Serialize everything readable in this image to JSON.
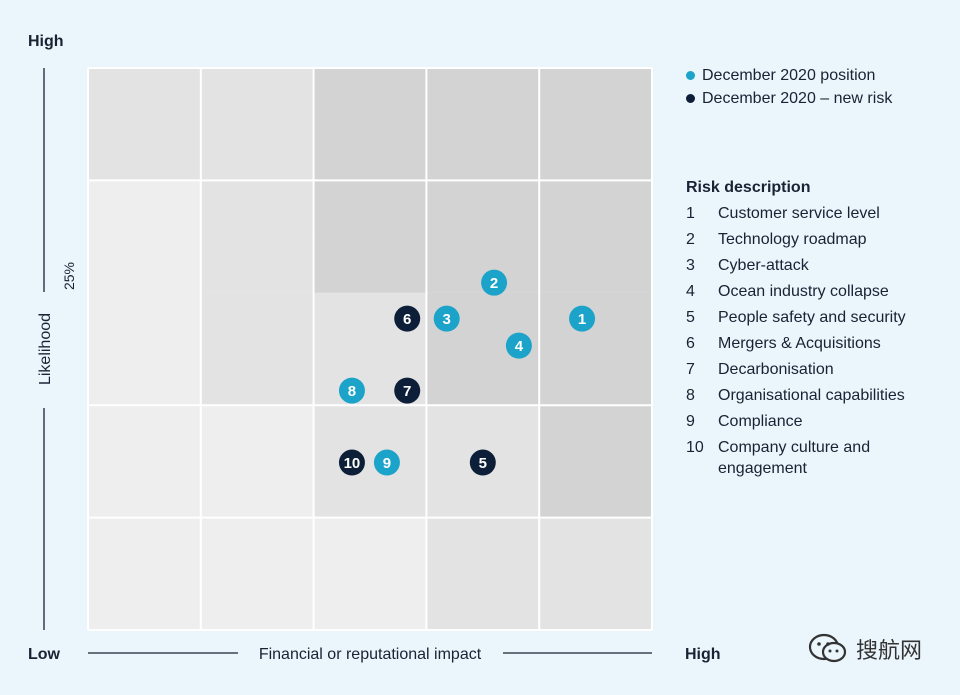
{
  "chart_data": {
    "type": "scatter",
    "x_axis_label": "Financial or reputational impact",
    "y_axis_label": "Likelihood",
    "y_marker_label": "25%",
    "x_low_label": "Low",
    "x_high_label": "High",
    "y_high_label": "High",
    "xlim": [
      0,
      5
    ],
    "ylim": [
      0,
      5
    ],
    "grid": {
      "columns": 5,
      "rows": 5
    },
    "series": [
      {
        "name": "December 2020 position",
        "color": "#1ca3c9",
        "points": [
          {
            "id": "1",
            "x": 4.38,
            "y": 2.77
          },
          {
            "id": "2",
            "x": 3.6,
            "y": 3.09
          },
          {
            "id": "3",
            "x": 3.18,
            "y": 2.77
          },
          {
            "id": "4",
            "x": 3.82,
            "y": 2.53
          },
          {
            "id": "8",
            "x": 2.34,
            "y": 2.13
          },
          {
            "id": "9",
            "x": 2.65,
            "y": 1.49
          }
        ]
      },
      {
        "name": "December 2020 – new risk",
        "color": "#0d1f38",
        "points": [
          {
            "id": "6",
            "x": 2.83,
            "y": 2.77
          },
          {
            "id": "7",
            "x": 2.83,
            "y": 2.13
          },
          {
            "id": "10",
            "x": 2.34,
            "y": 1.49
          },
          {
            "id": "5",
            "x": 3.5,
            "y": 1.49
          }
        ]
      }
    ]
  },
  "legend": {
    "items": [
      {
        "label": "December 2020 position",
        "color": "#1ca3c9"
      },
      {
        "label": "December 2020 – new risk",
        "color": "#0d1f38"
      }
    ]
  },
  "risk_description": {
    "title": "Risk description",
    "items": [
      {
        "num": "1",
        "label": "Customer service level"
      },
      {
        "num": "2",
        "label": "Technology roadmap"
      },
      {
        "num": "3",
        "label": "Cyber-attack"
      },
      {
        "num": "4",
        "label": "Ocean industry collapse"
      },
      {
        "num": "5",
        "label": "People safety and security"
      },
      {
        "num": "6",
        "label": "Mergers & Acquisitions"
      },
      {
        "num": "7",
        "label": "Decarbonisation"
      },
      {
        "num": "8",
        "label": "Organisational capabilities"
      },
      {
        "num": "9",
        "label": "Compliance"
      },
      {
        "num": "10",
        "label": "Company culture and engagement"
      }
    ]
  },
  "watermark": {
    "text": "搜航网"
  }
}
